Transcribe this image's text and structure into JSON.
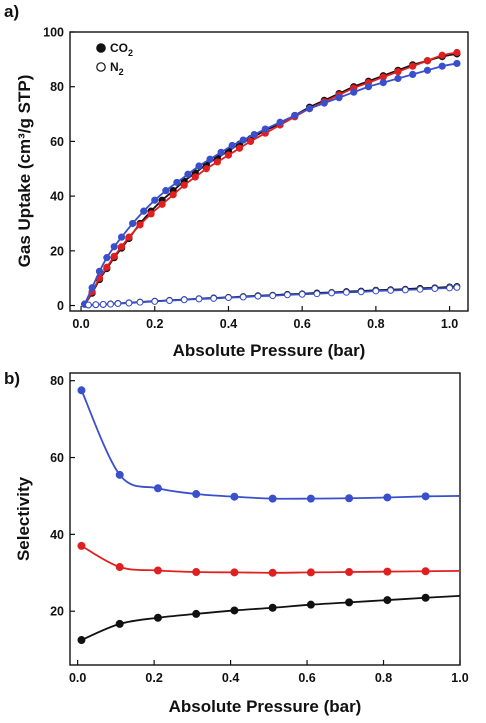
{
  "chart_data": [
    {
      "type": "line",
      "panel_label": "a)",
      "xlabel": "Absolute Pressure (bar)",
      "ylabel": "Gas Uptake (cm³/g STP)",
      "xlim": [
        -0.03,
        1.05
      ],
      "ylim": [
        -2,
        100
      ],
      "x_ticks": [
        "0.0",
        "0.2",
        "0.4",
        "0.6",
        "0.8",
        "1.0"
      ],
      "y_ticks": [
        "0",
        "20",
        "40",
        "60",
        "80",
        "100"
      ],
      "legend": {
        "position": "top-left",
        "entries": [
          {
            "label": "CO₂",
            "base": "CO",
            "sub": "2",
            "marker": "filled-circle"
          },
          {
            "label": "N₂",
            "base": "N",
            "sub": "2",
            "marker": "open-circle"
          }
        ]
      },
      "series": [
        {
          "gas": "CO2",
          "color": "#111111",
          "marker": "filled",
          "x": [
            0.01,
            0.03,
            0.05,
            0.07,
            0.09,
            0.11,
            0.13,
            0.16,
            0.19,
            0.22,
            0.25,
            0.28,
            0.31,
            0.34,
            0.37,
            0.4,
            0.43,
            0.46,
            0.5,
            0.54,
            0.58,
            0.62,
            0.66,
            0.7,
            0.74,
            0.78,
            0.82,
            0.86,
            0.9,
            0.94,
            0.98,
            1.02
          ],
          "y": [
            0.5,
            4.5,
            9.5,
            13.5,
            17.5,
            21.0,
            24.5,
            30.0,
            34.5,
            38.5,
            42.0,
            45.5,
            48.5,
            51.5,
            54.0,
            56.5,
            59.0,
            61.0,
            64.0,
            66.5,
            69.5,
            72.5,
            75.0,
            77.5,
            80.0,
            82.0,
            84.0,
            86.0,
            88.0,
            89.5,
            91.0,
            92.0
          ]
        },
        {
          "gas": "CO2",
          "color": "#e02020",
          "marker": "filled",
          "x": [
            0.01,
            0.03,
            0.05,
            0.07,
            0.09,
            0.11,
            0.13,
            0.16,
            0.19,
            0.22,
            0.25,
            0.28,
            0.31,
            0.34,
            0.37,
            0.4,
            0.43,
            0.46,
            0.5,
            0.54,
            0.58,
            0.62,
            0.66,
            0.7,
            0.74,
            0.78,
            0.82,
            0.86,
            0.9,
            0.94,
            0.98,
            1.02
          ],
          "y": [
            0.5,
            5.0,
            10.0,
            14.0,
            18.0,
            21.5,
            25.0,
            29.5,
            33.5,
            37.0,
            40.5,
            44.0,
            47.0,
            50.0,
            52.5,
            55.0,
            57.5,
            60.0,
            63.0,
            66.0,
            69.0,
            72.0,
            74.5,
            77.0,
            79.5,
            81.5,
            83.5,
            85.5,
            87.5,
            89.5,
            91.5,
            92.5
          ]
        },
        {
          "gas": "CO2",
          "color": "#3a4fcc",
          "marker": "filled",
          "x": [
            0.01,
            0.03,
            0.05,
            0.07,
            0.09,
            0.11,
            0.14,
            0.17,
            0.2,
            0.23,
            0.26,
            0.29,
            0.32,
            0.35,
            0.38,
            0.41,
            0.44,
            0.47,
            0.5,
            0.54,
            0.58,
            0.62,
            0.66,
            0.7,
            0.74,
            0.78,
            0.82,
            0.86,
            0.9,
            0.94,
            0.98,
            1.02
          ],
          "y": [
            0.5,
            6.5,
            12.5,
            17.5,
            21.5,
            25.0,
            30.0,
            34.5,
            38.5,
            42.0,
            45.0,
            48.0,
            51.0,
            53.5,
            56.0,
            58.5,
            60.5,
            62.5,
            64.5,
            67.0,
            69.5,
            72.0,
            74.0,
            76.0,
            78.0,
            80.0,
            81.5,
            83.0,
            84.5,
            86.0,
            87.5,
            88.5
          ]
        },
        {
          "gas": "N2",
          "color": "#111111",
          "marker": "open",
          "x": [
            0.02,
            0.04,
            0.06,
            0.08,
            0.1,
            0.13,
            0.16,
            0.2,
            0.24,
            0.28,
            0.32,
            0.36,
            0.4,
            0.44,
            0.48,
            0.52,
            0.56,
            0.6,
            0.64,
            0.68,
            0.72,
            0.76,
            0.8,
            0.84,
            0.88,
            0.92,
            0.96,
            1.0,
            1.02
          ],
          "y": [
            0.2,
            0.3,
            0.4,
            0.6,
            0.8,
            1.0,
            1.3,
            1.6,
            1.9,
            2.2,
            2.5,
            2.8,
            3.0,
            3.3,
            3.6,
            3.8,
            4.1,
            4.3,
            4.6,
            4.8,
            5.1,
            5.3,
            5.6,
            5.8,
            6.0,
            6.3,
            6.5,
            6.8,
            7.0
          ]
        },
        {
          "gas": "N2",
          "color": "#3a4fcc",
          "marker": "open",
          "x": [
            0.02,
            0.04,
            0.06,
            0.08,
            0.1,
            0.13,
            0.16,
            0.2,
            0.24,
            0.28,
            0.32,
            0.36,
            0.4,
            0.44,
            0.48,
            0.52,
            0.56,
            0.6,
            0.64,
            0.68,
            0.72,
            0.76,
            0.8,
            0.84,
            0.88,
            0.92,
            0.96,
            1.0,
            1.02
          ],
          "y": [
            0.2,
            0.3,
            0.4,
            0.5,
            0.7,
            0.9,
            1.2,
            1.5,
            1.8,
            2.1,
            2.4,
            2.6,
            2.9,
            3.1,
            3.4,
            3.6,
            3.9,
            4.1,
            4.3,
            4.6,
            4.8,
            5.0,
            5.3,
            5.5,
            5.7,
            5.9,
            6.2,
            6.4,
            6.6
          ]
        }
      ]
    },
    {
      "type": "line",
      "panel_label": "b)",
      "xlabel": "Absolute Pressure (bar)",
      "ylabel": "Selectivity",
      "xlim": [
        -0.02,
        1.0
      ],
      "ylim": [
        6,
        82
      ],
      "x_ticks": [
        "0.0",
        "0.2",
        "0.4",
        "0.6",
        "0.8",
        "1.0"
      ],
      "y_ticks": [
        "20",
        "40",
        "60",
        "80"
      ],
      "series": [
        {
          "color": "#3a4fcc",
          "x": [
            0.01,
            0.11,
            0.21,
            0.31,
            0.41,
            0.51,
            0.61,
            0.71,
            0.81,
            0.91
          ],
          "y": [
            77.5,
            55.5,
            52.0,
            50.5,
            49.8,
            49.3,
            49.3,
            49.4,
            49.6,
            49.9
          ],
          "curve_end": 50.0
        },
        {
          "color": "#e02020",
          "x": [
            0.01,
            0.11,
            0.21,
            0.31,
            0.41,
            0.51,
            0.61,
            0.71,
            0.81,
            0.91
          ],
          "y": [
            37.0,
            31.5,
            30.6,
            30.2,
            30.1,
            30.0,
            30.1,
            30.2,
            30.3,
            30.4
          ],
          "curve_end": 30.5
        },
        {
          "color": "#111111",
          "x": [
            0.01,
            0.11,
            0.21,
            0.31,
            0.41,
            0.51,
            0.61,
            0.71,
            0.81,
            0.91
          ],
          "y": [
            12.5,
            16.7,
            18.3,
            19.3,
            20.2,
            20.9,
            21.7,
            22.3,
            22.9,
            23.5
          ],
          "curve_end": 24.0
        }
      ]
    }
  ]
}
